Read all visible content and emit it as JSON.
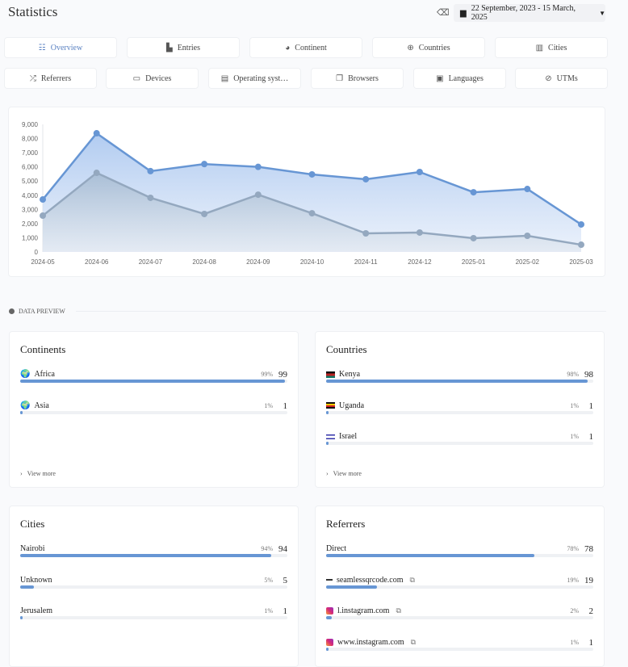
{
  "header": {
    "title": "Statistics",
    "date_range": "22 September, 2023 - 15 March, 2025"
  },
  "tabs_row1": [
    {
      "label": "Overview",
      "icon": "list-icon",
      "glyph": "☷",
      "active": true
    },
    {
      "label": "Entries",
      "icon": "bar-chart-icon",
      "glyph": "▙"
    },
    {
      "label": "Continent",
      "icon": "globe-icon",
      "glyph": "◕"
    },
    {
      "label": "Countries",
      "icon": "globe-grid-icon",
      "glyph": "⊕"
    },
    {
      "label": "Cities",
      "icon": "city-icon",
      "glyph": "▥"
    }
  ],
  "tabs_row2": [
    {
      "label": "Referrers",
      "icon": "shuffle-icon",
      "glyph": "⤮"
    },
    {
      "label": "Devices",
      "icon": "laptop-icon",
      "glyph": "▭"
    },
    {
      "label": "Operating syst…",
      "icon": "server-icon",
      "glyph": "▤"
    },
    {
      "label": "Browsers",
      "icon": "browser-icon",
      "glyph": "❐"
    },
    {
      "label": "Languages",
      "icon": "language-icon",
      "glyph": "▣"
    },
    {
      "label": "UTMs",
      "icon": "link-icon",
      "glyph": "⊘"
    }
  ],
  "chart_data": {
    "type": "area",
    "categories": [
      "2024-05",
      "2024-06",
      "2024-07",
      "2024-08",
      "2024-09",
      "2024-10",
      "2024-11",
      "2024-12",
      "2025-01",
      "2025-02",
      "2025-03"
    ],
    "series": [
      {
        "values": [
          3700,
          8370,
          5700,
          6200,
          6000,
          5470,
          5130,
          5640,
          4210,
          4440,
          1940
        ],
        "color": "#6796d4"
      },
      {
        "values": [
          2560,
          5580,
          3820,
          2680,
          4040,
          2730,
          1310,
          1370,
          970,
          1140,
          510
        ],
        "color": "#94a8bf"
      }
    ],
    "yticks": [
      "0",
      "1,000",
      "2,000",
      "3,000",
      "4,000",
      "5,000",
      "6,000",
      "7,000",
      "8,000",
      "9,000"
    ],
    "ylim": [
      0,
      9000
    ],
    "grid": false
  },
  "section_label": "DATA PREVIEW",
  "view_more": "View more",
  "cards": [
    {
      "title": "Continents",
      "rows": [
        {
          "label": "Africa",
          "pct": "99%",
          "count": "99",
          "fill": 99,
          "icon": "globe-africa-icon"
        },
        {
          "label": "Asia",
          "pct": "1%",
          "count": "1",
          "fill": 1,
          "icon": "globe-asia-icon"
        }
      ],
      "more": true
    },
    {
      "title": "Countries",
      "rows": [
        {
          "label": "Kenya",
          "pct": "98%",
          "count": "98",
          "fill": 98,
          "icon": "flag-kenya-icon"
        },
        {
          "label": "Uganda",
          "pct": "1%",
          "count": "1",
          "fill": 1,
          "icon": "flag-uganda-icon"
        },
        {
          "label": "Israel",
          "pct": "1%",
          "count": "1",
          "fill": 1,
          "icon": "flag-israel-icon"
        }
      ],
      "more": true
    },
    {
      "title": "Cities",
      "rows": [
        {
          "label": "Nairobi",
          "pct": "94%",
          "count": "94",
          "fill": 94
        },
        {
          "label": "Unknown",
          "pct": "5%",
          "count": "5",
          "fill": 5
        },
        {
          "label": "Jerusalem",
          "pct": "1%",
          "count": "1",
          "fill": 1
        }
      ]
    },
    {
      "title": "Referrers",
      "rows": [
        {
          "label": "Direct",
          "pct": "78%",
          "count": "78",
          "fill": 78
        },
        {
          "label": "seamlessqrcode.com",
          "pct": "19%",
          "count": "19",
          "fill": 19,
          "icon": "site-favicon-icon",
          "ext": true
        },
        {
          "label": "l.instagram.com",
          "pct": "2%",
          "count": "2",
          "fill": 2,
          "icon": "instagram-icon",
          "ext": true
        },
        {
          "label": "www.instagram.com",
          "pct": "1%",
          "count": "1",
          "fill": 1,
          "icon": "instagram-icon",
          "ext": true
        }
      ]
    }
  ]
}
